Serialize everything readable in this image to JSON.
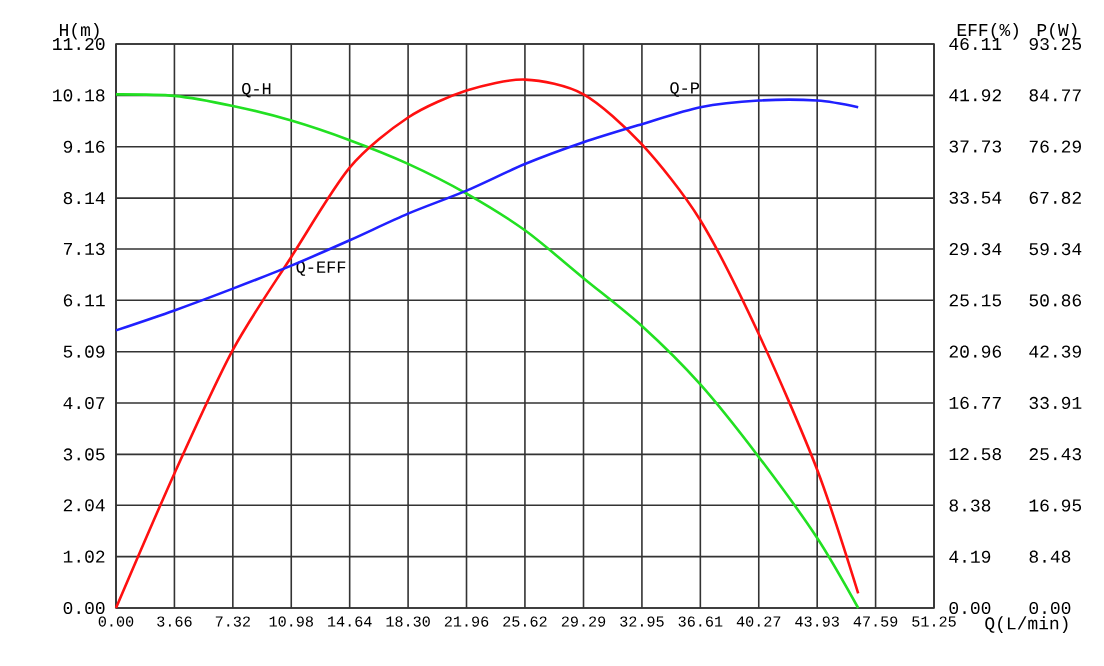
{
  "chart_data": {
    "type": "line",
    "xlabel": "Q(L/min)",
    "ylabel": "H(m)",
    "y2label": "EFF(%)",
    "y3label": "P(W)",
    "grid": true,
    "legend": false,
    "x": [
      0,
      3.66,
      7.32,
      10.98,
      14.64,
      18.3,
      21.96,
      25.62,
      29.29,
      32.95,
      36.61,
      40.27,
      43.93,
      46.5
    ],
    "series": [
      {
        "name": "Q-H",
        "color": "#22e022",
        "values": [
          10.2,
          10.17,
          9.97,
          9.68,
          9.29,
          8.82,
          8.23,
          7.5,
          6.55,
          5.6,
          4.44,
          3.0,
          1.39,
          0
        ]
      },
      {
        "name": "Q-EFF",
        "color": "#ff1010",
        "axis": "y2",
        "values": [
          0,
          11.0,
          21.1,
          28.7,
          36.0,
          40.1,
          42.3,
          43.2,
          42.0,
          37.9,
          31.7,
          22.4,
          11.3,
          1.2
        ]
      },
      {
        "name": "Q-P",
        "color": "#2020ff",
        "axis": "y3",
        "values": [
          45.9,
          49.2,
          52.8,
          56.6,
          60.8,
          65.2,
          69.0,
          73.4,
          77.0,
          80.0,
          82.8,
          83.9,
          83.9,
          82.8
        ]
      }
    ],
    "xlim": [
      0,
      51.25
    ],
    "ylim": [
      0,
      11.2
    ],
    "y2lim": [
      0,
      46.11
    ],
    "y3lim": [
      0,
      93.25
    ],
    "xticks": [
      {
        "value": 0,
        "label": "0.00"
      },
      3.66,
      7.32,
      10.98,
      14.64,
      {
        "value": 18.3,
        "label": "18.30"
      },
      21.96,
      25.62,
      29.29,
      32.95,
      36.61,
      40.27,
      43.93,
      47.59,
      51.25
    ],
    "yticks": [
      {
        "value": 0,
        "label": "0.00"
      },
      1.02,
      2.04,
      3.05,
      4.07,
      5.09,
      6.11,
      7.13,
      8.14,
      9.16,
      10.18,
      {
        "value": 11.2,
        "label": "11.20"
      }
    ],
    "y2ticks": [
      {
        "value": 0,
        "label": "0.00"
      },
      4.19,
      8.38,
      12.58,
      16.77,
      20.96,
      25.15,
      29.34,
      33.54,
      37.73,
      41.92,
      46.11
    ],
    "y3ticks": [
      {
        "value": 0,
        "label": "0.00"
      },
      8.48,
      16.95,
      25.43,
      33.91,
      42.39,
      50.86,
      59.34,
      67.82,
      76.29,
      84.77,
      93.25
    ]
  }
}
